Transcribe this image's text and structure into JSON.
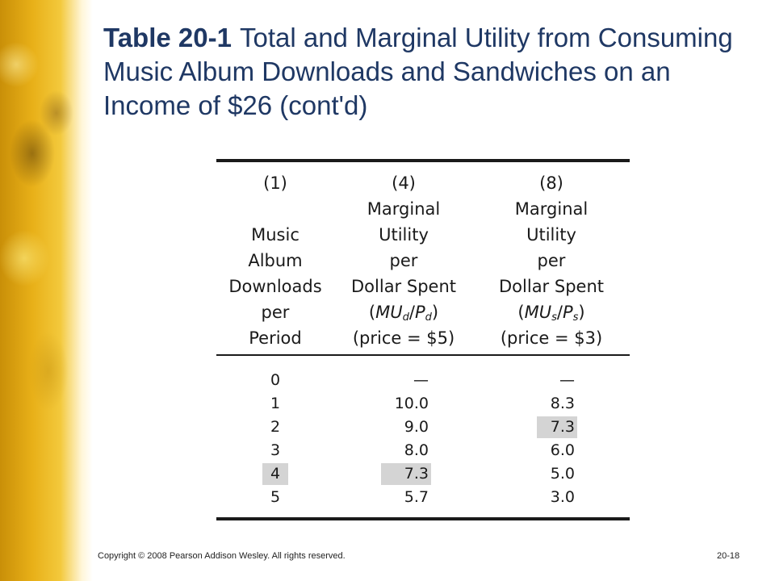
{
  "title": {
    "number": "Table 20-1",
    "text": "Total and Marginal Utility from Consuming Music Album Downloads and Sandwiches on an Income of $26 (cont'd)"
  },
  "table": {
    "headers": {
      "col1": {
        "num": "(1)",
        "l1": "Music",
        "l2": "Album",
        "l3": "Downloads",
        "l4": "per",
        "l5": "Period"
      },
      "col2": {
        "num": "(4)",
        "l1": "Marginal",
        "l2": "Utility",
        "l3": "per",
        "l4": "Dollar Spent",
        "mu": "MU",
        "mu_sub": "d",
        "p": "P",
        "p_sub": "d",
        "price": "(price = $5)"
      },
      "col3": {
        "num": "(8)",
        "l1": "Marginal",
        "l2": "Utility",
        "l3": "per",
        "l4": "Dollar Spent",
        "mu": "MU",
        "mu_sub": "s",
        "p": "P",
        "p_sub": "s",
        "price": "(price = $3)"
      }
    },
    "rows": [
      {
        "downloads": "0",
        "mu_d": "—",
        "mu_s": "—"
      },
      {
        "downloads": "1",
        "mu_d": "10.0",
        "mu_s": "8.3"
      },
      {
        "downloads": "2",
        "mu_d": "9.0",
        "mu_s": "7.3"
      },
      {
        "downloads": "3",
        "mu_d": "8.0",
        "mu_s": "6.0"
      },
      {
        "downloads": "4",
        "mu_d": "7.3",
        "mu_s": "5.0"
      },
      {
        "downloads": "5",
        "mu_d": "5.7",
        "mu_s": "3.0"
      }
    ],
    "highlight_color": "#d4d4d4"
  },
  "footer": {
    "copyright": "Copyright © 2008 Pearson Addison Wesley. All rights reserved.",
    "slide_number": "20-18"
  }
}
